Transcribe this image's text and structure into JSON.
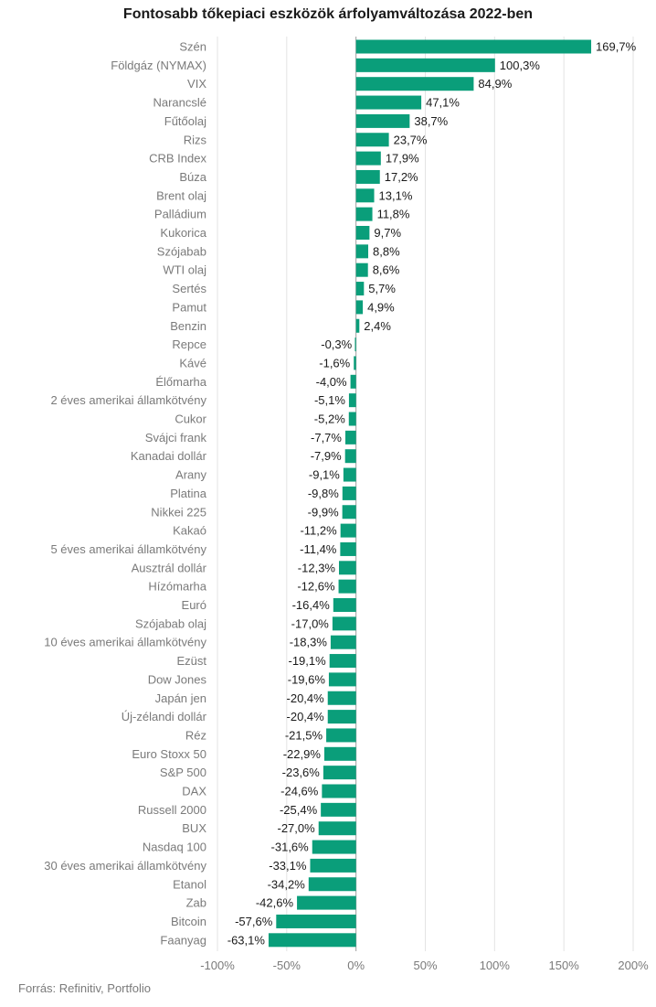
{
  "chart_data": {
    "type": "bar",
    "orientation": "horizontal",
    "title": "Fontosabb tőkepiaci eszközök árfolyamváltozása 2022-ben",
    "categories": [
      "Szén",
      "Földgáz (NYMAX)",
      "VIX",
      "Narancslé",
      "Fűtőolaj",
      "Rizs",
      "CRB Index",
      "Búza",
      "Brent olaj",
      "Palládium",
      "Kukorica",
      "Szójabab",
      "WTI olaj",
      "Sertés",
      "Pamut",
      "Benzin",
      "Repce",
      "Kávé",
      "Élőmarha",
      "2 éves amerikai államkötvény",
      "Cukor",
      "Svájci frank",
      "Kanadai dollár",
      "Arany",
      "Platina",
      "Nikkei 225",
      "Kakaó",
      "5 éves amerikai államkötvény",
      "Ausztrál dollár",
      "Hízómarha",
      "Euró",
      "Szójabab olaj",
      "10 éves amerikai államkötvény",
      "Ezüst",
      "Dow Jones",
      "Japán jen",
      "Új-zélandi dollár",
      "Réz",
      "Euro Stoxx 50",
      "S&P 500",
      "DAX",
      "Russell 2000",
      "BUX",
      "Nasdaq 100",
      "30 éves amerikai államkötvény",
      "Etanol",
      "Zab",
      "Bitcoin",
      "Faanyag"
    ],
    "values": [
      169.7,
      100.3,
      84.9,
      47.1,
      38.7,
      23.7,
      17.9,
      17.2,
      13.1,
      11.8,
      9.7,
      8.8,
      8.6,
      5.7,
      4.9,
      2.4,
      -0.3,
      -1.6,
      -4.0,
      -5.1,
      -5.2,
      -7.7,
      -7.9,
      -9.1,
      -9.8,
      -9.9,
      -11.2,
      -11.4,
      -12.3,
      -12.6,
      -16.4,
      -17.0,
      -18.3,
      -19.1,
      -19.6,
      -20.4,
      -20.4,
      -21.5,
      -22.9,
      -23.6,
      -24.6,
      -25.4,
      -27.0,
      -31.6,
      -33.1,
      -34.2,
      -42.6,
      -57.6,
      -63.1
    ],
    "value_labels": [
      "169,7%",
      "100,3%",
      "84,9%",
      "47,1%",
      "38,7%",
      "23,7%",
      "17,9%",
      "17,2%",
      "13,1%",
      "11,8%",
      "9,7%",
      "8,8%",
      "8,6%",
      "5,7%",
      "4,9%",
      "2,4%",
      "-0,3%",
      "-1,6%",
      "-4,0%",
      "-5,1%",
      "-5,2%",
      "-7,7%",
      "-7,9%",
      "-9,1%",
      "-9,8%",
      "-9,9%",
      "-11,2%",
      "-11,4%",
      "-12,3%",
      "-12,6%",
      "-16,4%",
      "-17,0%",
      "-18,3%",
      "-19,1%",
      "-19,6%",
      "-20,4%",
      "-20,4%",
      "-21,5%",
      "-22,9%",
      "-23,6%",
      "-24,6%",
      "-25,4%",
      "-27,0%",
      "-31,6%",
      "-33,1%",
      "-34,2%",
      "-42,6%",
      "-57,6%",
      "-63,1%"
    ],
    "xlim": [
      -100,
      200
    ],
    "x_ticks": [
      -100,
      -50,
      0,
      50,
      100,
      150,
      200
    ],
    "x_tick_labels": [
      "-100%",
      "-50%",
      "0%",
      "50%",
      "100%",
      "150%",
      "200%"
    ],
    "grid": "vertical",
    "bar_color": "#0a9e7a"
  },
  "source": "Forrás: Refinitiv, Portfolio"
}
